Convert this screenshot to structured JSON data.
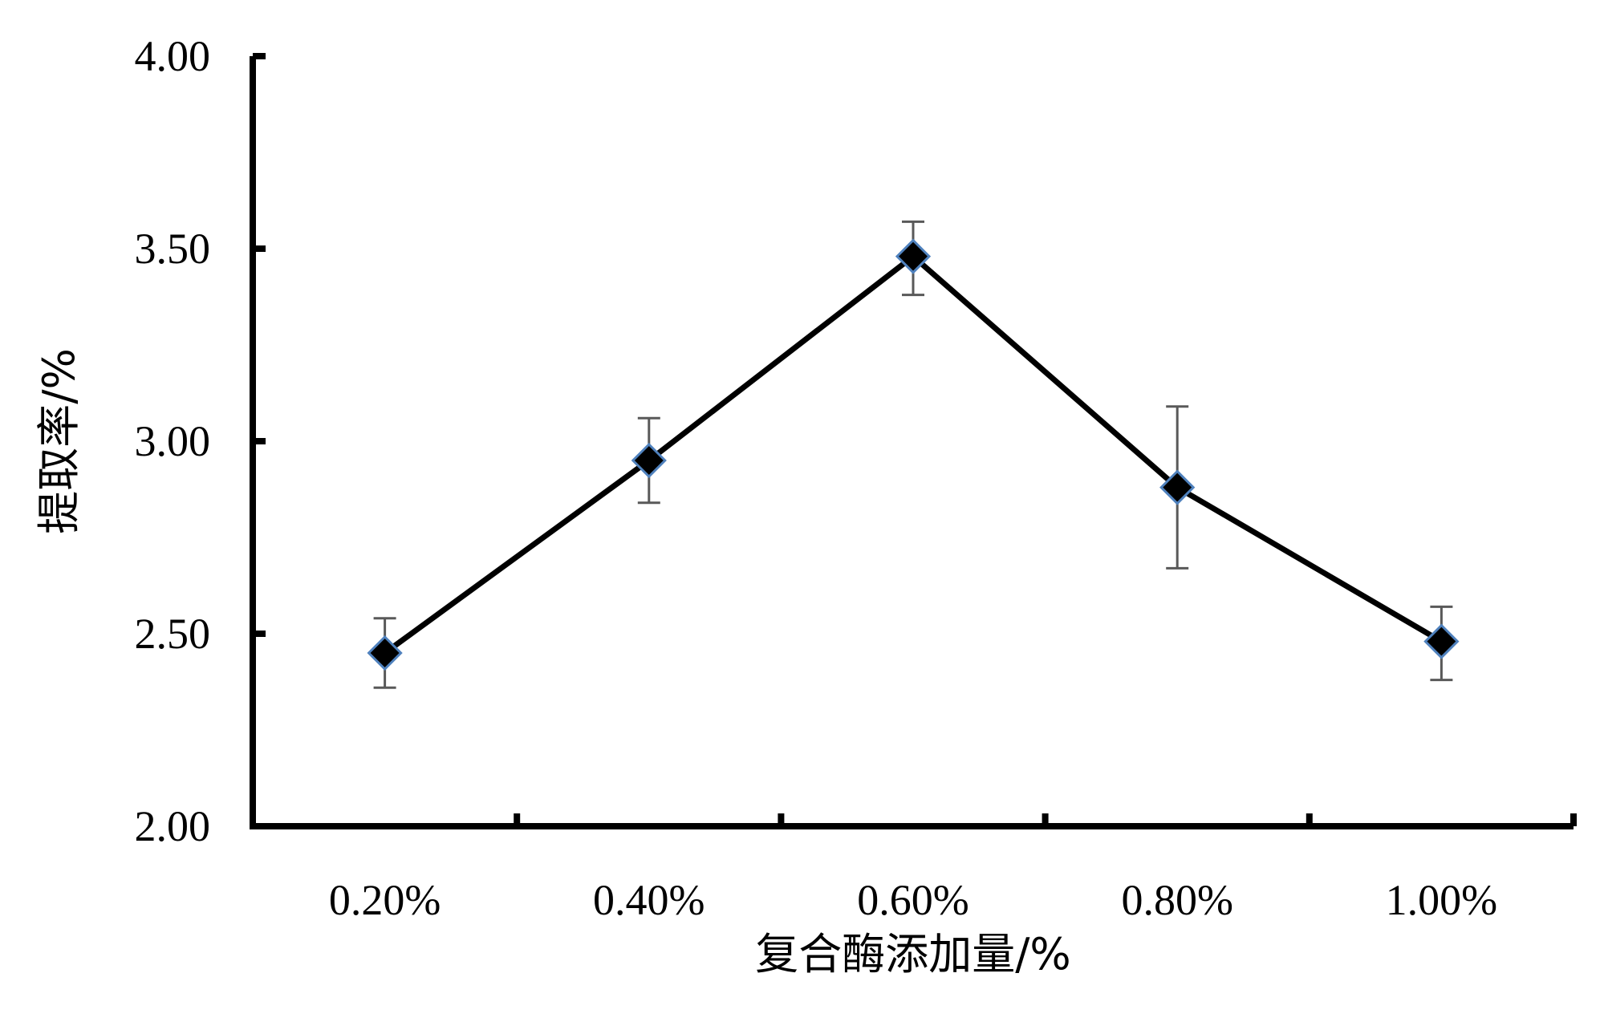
{
  "chart_data": {
    "type": "line",
    "title": "",
    "xlabel": "复合酶添加量/%",
    "ylabel": "提取率/%",
    "categories": [
      "0.20%",
      "0.40%",
      "0.60%",
      "0.80%",
      "1.00%"
    ],
    "values": [
      2.45,
      2.95,
      3.48,
      2.88,
      2.48
    ],
    "error_upper": [
      2.54,
      3.06,
      3.57,
      3.09,
      2.57
    ],
    "error_lower": [
      2.36,
      2.84,
      3.38,
      2.67,
      2.38
    ],
    "ylim": [
      2.0,
      4.0
    ],
    "yticks": [
      2.0,
      2.5,
      3.0,
      3.5,
      4.0
    ],
    "ytick_labels": [
      "2.00",
      "2.50",
      "3.00",
      "3.50",
      "4.00"
    ],
    "grid": false,
    "legend": "none",
    "colors": {
      "line": "#000000",
      "marker_fill": "#000000",
      "marker_edge": "#4f81bd",
      "error_bar": "#595959"
    }
  }
}
